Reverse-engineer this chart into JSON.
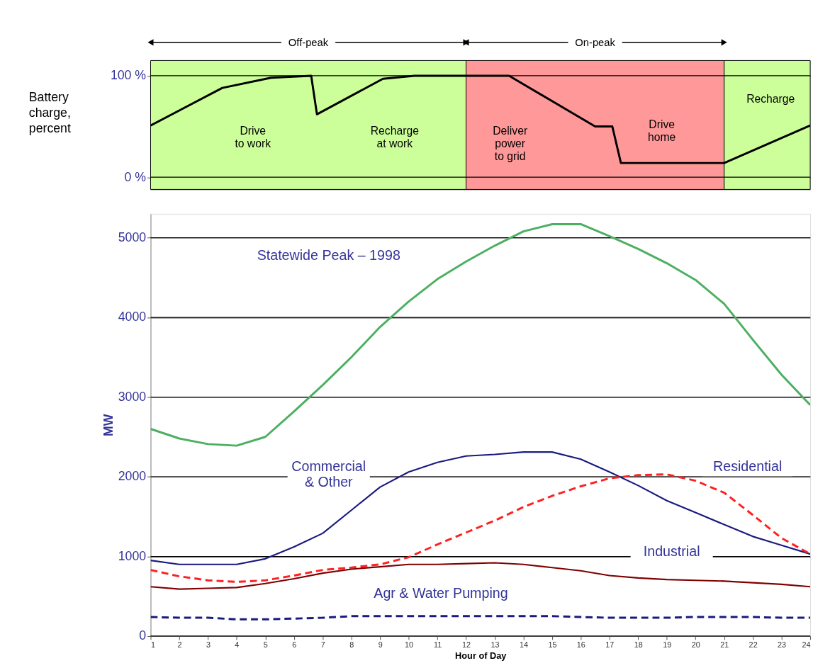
{
  "chart_data": [
    {
      "type": "line",
      "ylabel": "Battery charge, percent",
      "xlim": [
        1,
        24
      ],
      "ylim": [
        -12,
        115
      ],
      "yticks": [
        {
          "value": 0,
          "label": "0 %"
        },
        {
          "value": 100,
          "label": "100 %"
        }
      ],
      "tick_labels": "y",
      "grid": "y",
      "bands": [
        {
          "axis": "x",
          "from": 1,
          "to": 12,
          "label": "Off-peak",
          "color": "#ccff99"
        },
        {
          "axis": "x",
          "from": 12,
          "to": 21,
          "label": "On-peak",
          "color": "#ff9999"
        },
        {
          "axis": "x",
          "from": 21,
          "to": 24,
          "color": "#ccff99"
        }
      ],
      "series": [
        {
          "color": "#000000",
          "x": [
            1,
            3.5,
            5.2,
            6.6,
            6.8,
            9.1,
            10.2,
            13.5,
            16.5,
            17.1,
            17.4,
            21,
            24
          ],
          "values": [
            51,
            88,
            98,
            100,
            62,
            97,
            100,
            100,
            50,
            50,
            14,
            14,
            51
          ]
        }
      ],
      "annotations": [
        "Drive\nto work",
        "Recharge\nat work",
        "Deliver\npower\nto grid",
        "Drive\nhome",
        "Recharge"
      ]
    },
    {
      "type": "line",
      "xlabel": "Hour of Day",
      "ylabel": "MW",
      "xlim": [
        1,
        24
      ],
      "ylim": [
        0,
        5300
      ],
      "x": [
        1,
        2,
        3,
        4,
        5,
        6,
        7,
        8,
        9,
        10,
        11,
        12,
        13,
        14,
        15,
        16,
        17,
        18,
        19,
        20,
        21,
        22,
        23,
        24
      ],
      "xticks": [
        1,
        2,
        3,
        4,
        5,
        6,
        7,
        8,
        9,
        10,
        11,
        12,
        13,
        14,
        15,
        16,
        17,
        18,
        19,
        20,
        21,
        22,
        23,
        24
      ],
      "yticks": [
        0,
        1000,
        2000,
        3000,
        4000,
        5000
      ],
      "grid": "y",
      "series": [
        {
          "name": "Statewide Peak – 1998",
          "color": "#4caf62",
          "values": [
            2600,
            2480,
            2410,
            2390,
            2500,
            2820,
            3150,
            3500,
            3880,
            4200,
            4480,
            4700,
            4900,
            5080,
            5170,
            5170,
            5020,
            4860,
            4680,
            4470,
            4170,
            3720,
            3280,
            2900
          ]
        },
        {
          "name": "Commercial\n& Other",
          "color": "#1a1a80",
          "values": [
            950,
            900,
            900,
            900,
            970,
            1120,
            1290,
            1580,
            1870,
            2060,
            2180,
            2260,
            2280,
            2310,
            2310,
            2220,
            2060,
            1890,
            1700,
            1550,
            1400,
            1250,
            1140,
            1030
          ]
        },
        {
          "name": "Residential",
          "color": "#ff2020",
          "line_style": "dashed",
          "values": [
            830,
            750,
            700,
            680,
            700,
            760,
            830,
            860,
            900,
            990,
            1150,
            1300,
            1450,
            1620,
            1760,
            1880,
            1980,
            2020,
            2030,
            1950,
            1800,
            1520,
            1230,
            1030
          ]
        },
        {
          "name": "Industrial",
          "color": "#800000",
          "values": [
            620,
            590,
            600,
            610,
            660,
            720,
            790,
            840,
            870,
            900,
            900,
            910,
            920,
            900,
            860,
            820,
            760,
            730,
            710,
            700,
            690,
            670,
            650,
            620
          ]
        },
        {
          "name": "Agr & Water Pumping",
          "color": "#1a1a80",
          "line_style": "dashed",
          "values": [
            240,
            230,
            230,
            210,
            210,
            220,
            230,
            250,
            250,
            250,
            250,
            250,
            250,
            250,
            250,
            240,
            230,
            230,
            230,
            240,
            240,
            240,
            230,
            230
          ]
        }
      ]
    }
  ]
}
